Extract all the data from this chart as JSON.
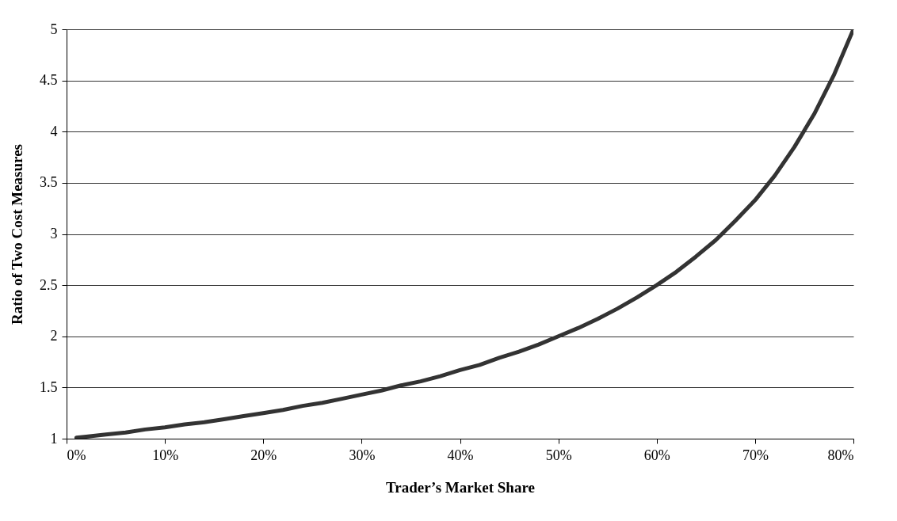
{
  "chart_data": {
    "type": "line",
    "xlabel": "Trader’s Market Share",
    "ylabel": "Ratio of Two Cost Measures",
    "x": [
      1,
      2,
      4,
      6,
      8,
      10,
      12,
      14,
      16,
      18,
      20,
      22,
      24,
      26,
      28,
      30,
      32,
      34,
      36,
      38,
      40,
      42,
      44,
      46,
      48,
      50,
      52,
      54,
      56,
      58,
      60,
      62,
      64,
      66,
      68,
      70,
      72,
      74,
      76,
      78,
      80
    ],
    "series": [
      {
        "color": "#333333",
        "values": [
          1.01,
          1.02,
          1.04,
          1.06,
          1.09,
          1.11,
          1.14,
          1.16,
          1.19,
          1.22,
          1.25,
          1.28,
          1.32,
          1.35,
          1.39,
          1.43,
          1.47,
          1.52,
          1.56,
          1.61,
          1.67,
          1.72,
          1.79,
          1.85,
          1.92,
          2.0,
          2.08,
          2.17,
          2.27,
          2.38,
          2.5,
          2.63,
          2.78,
          2.94,
          3.13,
          3.33,
          3.57,
          3.85,
          4.17,
          4.55,
          5
        ]
      }
    ],
    "xlim": [
      0,
      80
    ],
    "xticks": [
      {
        "value": 0,
        "label": "0%"
      },
      {
        "value": 10,
        "label": "10%"
      },
      {
        "value": 20,
        "label": "20%"
      },
      {
        "value": 30,
        "label": "30%"
      },
      {
        "value": 40,
        "label": "40%"
      },
      {
        "value": 50,
        "label": "50%"
      },
      {
        "value": 60,
        "label": "60%"
      },
      {
        "value": 70,
        "label": "70%"
      },
      {
        "value": 80,
        "label": "80%"
      }
    ],
    "ylim": [
      1,
      5
    ],
    "yticks": [
      1,
      1.5,
      2,
      2.5,
      3,
      3.5,
      4,
      4.5,
      5
    ],
    "grid": "y",
    "marker": "none",
    "line_style": "solid"
  }
}
